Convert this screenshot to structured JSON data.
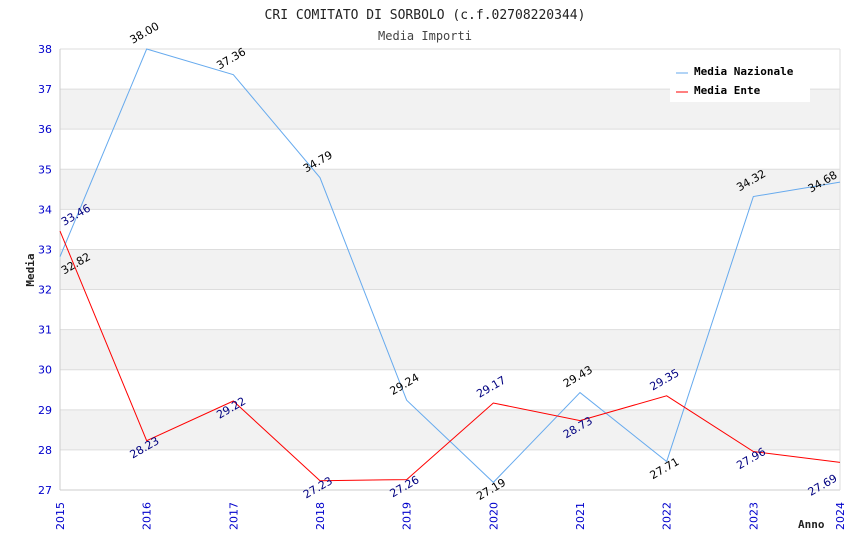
{
  "chart_data": {
    "type": "line",
    "title": "CRI COMITATO DI SORBOLO (c.f.02708220344)",
    "subtitle": "Media Importi",
    "xlabel": "Anno",
    "ylabel": "Media",
    "ylim": [
      27,
      38
    ],
    "yticks": [
      "27",
      "28",
      "29",
      "30",
      "31",
      "32",
      "33",
      "34",
      "35",
      "36",
      "37",
      "38"
    ],
    "categories": [
      "2015",
      "2016",
      "2017",
      "2018",
      "2019",
      "2020",
      "2021",
      "2022",
      "2023",
      "2024"
    ],
    "series": [
      {
        "name": "Media Nazionale",
        "color": "#66aaee",
        "label_color": "#000000",
        "values": [
          32.82,
          38.0,
          37.36,
          34.79,
          29.24,
          27.19,
          29.43,
          27.71,
          34.32,
          34.68
        ],
        "labels": [
          "32.82",
          "38.00",
          "37.36",
          "34.79",
          "29.24",
          "27.19",
          "29.43",
          "27.71",
          "34.32",
          "34.68"
        ]
      },
      {
        "name": "Media Ente",
        "color": "#ff0000",
        "label_color": "#000080",
        "values": [
          33.46,
          28.23,
          29.22,
          27.23,
          27.26,
          29.17,
          28.73,
          29.35,
          27.96,
          27.69
        ],
        "labels": [
          "33.46",
          "28.23",
          "29.22",
          "27.23",
          "27.26",
          "29.17",
          "28.73",
          "29.35",
          "27.96",
          "27.69"
        ]
      }
    ],
    "grid": true,
    "legend": "top-right"
  }
}
